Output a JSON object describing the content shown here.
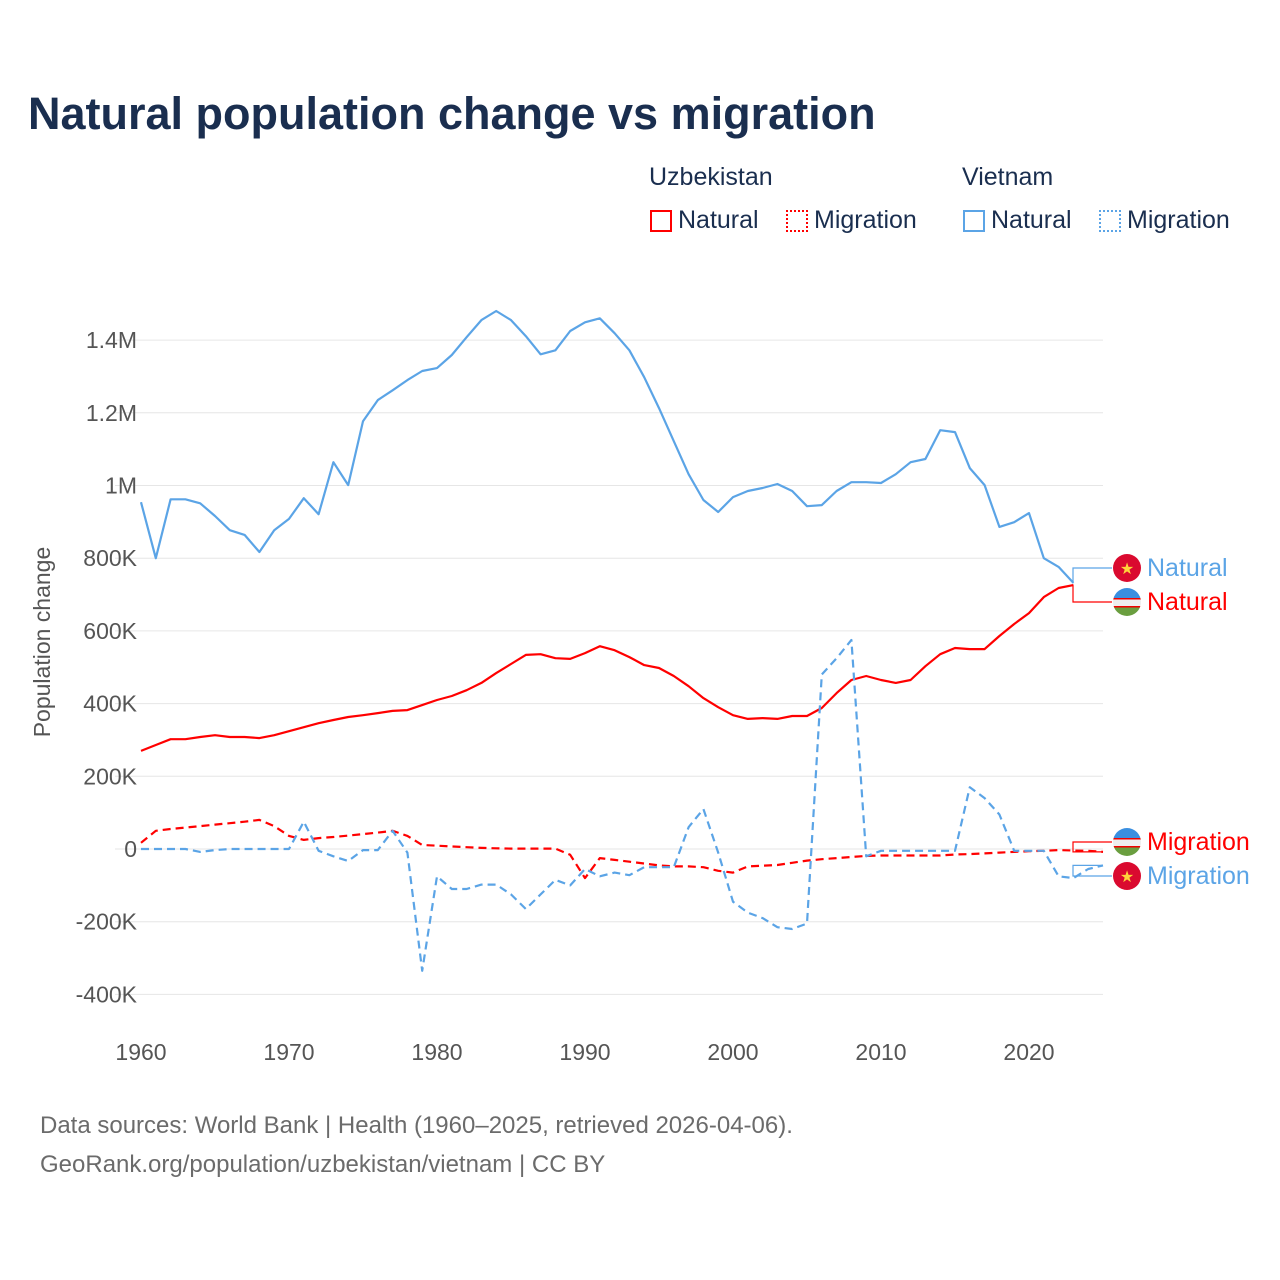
{
  "title": "Natural population change vs migration",
  "legend": {
    "groups": [
      {
        "name": "Uzbekistan",
        "items": [
          "Natural",
          "Migration"
        ]
      },
      {
        "name": "Vietnam",
        "items": [
          "Natural",
          "Migration"
        ]
      }
    ]
  },
  "colors": {
    "uzbekistan": "#ff0000",
    "vietnam": "#5ba4e6",
    "title": "#1a2e4f",
    "grid": "#e6e6e6"
  },
  "footer": {
    "line1": "Data sources: World Bank | Health (1960–2025, retrieved 2026-04-06).",
    "line2": "GeoRank.org/population/uzbekistan/vietnam | CC BY"
  },
  "chart_data": {
    "type": "line",
    "title": "Natural population change vs migration",
    "xlabel": "",
    "ylabel": "Population change",
    "xlim": [
      1960,
      2025
    ],
    "ylim": [
      -400000,
      1400000
    ],
    "x_ticks": [
      1960,
      1970,
      1980,
      1990,
      2000,
      2010,
      2020
    ],
    "x_tick_labels": [
      "1960",
      "1970",
      "1980",
      "1990",
      "2000",
      "2010",
      "2020"
    ],
    "y_ticks": [
      -400000,
      -200000,
      0,
      200000,
      400000,
      600000,
      800000,
      1000000,
      1200000,
      1400000
    ],
    "y_tick_labels": [
      "-400K",
      "-200K",
      "0",
      "200K",
      "400K",
      "600K",
      "800K",
      "1M",
      "1.2M",
      "1.4M"
    ],
    "grid": true,
    "legend_position": "top-right",
    "series": [
      {
        "name": "Vietnam Natural",
        "country": "Vietnam",
        "end_label": "Natural",
        "color": "#5ba4e6",
        "dash": false,
        "start_year": 1960,
        "values": [
          954000,
          800000,
          962000,
          962000,
          951000,
          916000,
          877000,
          864000,
          817000,
          877000,
          908000,
          965000,
          921000,
          1064000,
          1001000,
          1177000,
          1235000,
          1262000,
          1290000,
          1315000,
          1323000,
          1359000,
          1408000,
          1455000,
          1480000,
          1455000,
          1411000,
          1361000,
          1372000,
          1425000,
          1449000,
          1460000,
          1419000,
          1372000,
          1298000,
          1213000,
          1122000,
          1031000,
          960000,
          927000,
          968000,
          985000,
          993000,
          1004000,
          985000,
          943000,
          946000,
          985000,
          1009000,
          1009000,
          1007000,
          1031000,
          1064000,
          1073000,
          1152000,
          1147000,
          1048000,
          1001000,
          886000,
          899000,
          924000,
          800000,
          776000,
          732000
        ]
      },
      {
        "name": "Uzbekistan Natural",
        "country": "Uzbekistan",
        "end_label": "Natural",
        "color": "#ff0000",
        "dash": false,
        "start_year": 1960,
        "values": [
          270000,
          286000,
          302000,
          302000,
          308000,
          313000,
          308000,
          308000,
          305000,
          313000,
          324000,
          335000,
          346000,
          355000,
          363000,
          368000,
          374000,
          380000,
          382000,
          396000,
          410000,
          421000,
          437000,
          457000,
          484000,
          509000,
          534000,
          536000,
          525000,
          523000,
          539000,
          558000,
          547000,
          528000,
          506000,
          498000,
          476000,
          448000,
          415000,
          390000,
          368000,
          358000,
          360000,
          358000,
          366000,
          366000,
          388000,
          429000,
          465000,
          476000,
          465000,
          457000,
          465000,
          503000,
          536000,
          553000,
          550000,
          550000,
          586000,
          619000,
          649000,
          693000,
          718000,
          726000
        ]
      },
      {
        "name": "Uzbekistan Migration",
        "country": "Uzbekistan",
        "end_label": "Migration",
        "color": "#ff0000",
        "dash": true,
        "start_year": 1960,
        "values": [
          17000,
          50000,
          55000,
          59000,
          63000,
          67000,
          71000,
          75000,
          80000,
          63000,
          36000,
          25000,
          30000,
          33000,
          37000,
          41000,
          45000,
          50000,
          36000,
          11000,
          9000,
          7000,
          5000,
          3000,
          2000,
          1000,
          1000,
          1000,
          1000,
          -16000,
          -80000,
          -25000,
          -30000,
          -35000,
          -40000,
          -45000,
          -48000,
          -48000,
          -50000,
          -60000,
          -65000,
          -48000,
          -46000,
          -44000,
          -38000,
          -32000,
          -28000,
          -25000,
          -22000,
          -19000,
          -18000,
          -18000,
          -18000,
          -18000,
          -18000,
          -15000,
          -14000,
          -12000,
          -10000,
          -8000,
          -6000,
          -5000,
          -3000,
          -4000,
          -5000,
          -8000
        ]
      },
      {
        "name": "Vietnam Migration",
        "country": "Vietnam",
        "end_label": "Migration",
        "color": "#5ba4e6",
        "dash": true,
        "start_year": 1960,
        "values": [
          0,
          0,
          0,
          0,
          -8000,
          -3000,
          0,
          0,
          0,
          0,
          0,
          75000,
          -5000,
          -20000,
          -33000,
          -3000,
          -3000,
          50000,
          -10000,
          -335000,
          -75000,
          -110000,
          -110000,
          -98000,
          -98000,
          -125000,
          -165000,
          -125000,
          -85000,
          -100000,
          -55000,
          -75000,
          -65000,
          -72000,
          -50000,
          -50000,
          -50000,
          60000,
          110000,
          -10000,
          -145000,
          -175000,
          -190000,
          -215000,
          -220000,
          -205000,
          480000,
          525000,
          575000,
          -20000,
          -5000,
          -5000,
          -5000,
          -5000,
          -5000,
          -5000,
          170000,
          140000,
          95000,
          -5000,
          -5000,
          -5000,
          -75000,
          -80000,
          -55000,
          -45000
        ]
      }
    ]
  }
}
